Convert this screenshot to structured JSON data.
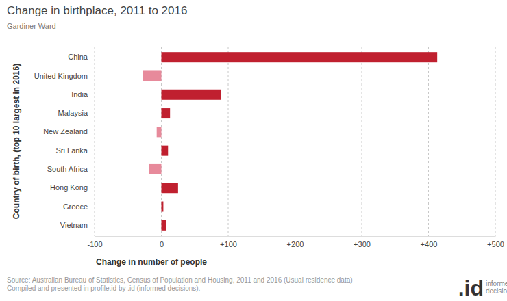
{
  "chart_data": {
    "type": "bar",
    "orientation": "horizontal",
    "title": "Change in birthplace, 2011 to 2016",
    "subtitle": "Gardiner Ward",
    "y_label": "Country of birth, (top 10 largest in 2016)",
    "x_label": "Change in number of people",
    "categories": [
      "China",
      "United Kingdom",
      "India",
      "Malaysia",
      "New Zealand",
      "Sri Lanka",
      "South Africa",
      "Hong Kong",
      "Greece",
      "Vietnam"
    ],
    "values": [
      413,
      -28,
      89,
      13,
      -7,
      10,
      -18,
      25,
      3,
      7
    ],
    "colors": [
      "#c0202f",
      "#e78a9b",
      "#c0202f",
      "#c0202f",
      "#e78a9b",
      "#c0202f",
      "#e78a9b",
      "#c0202f",
      "#c0202f",
      "#c0202f"
    ],
    "xlim": [
      -100,
      500
    ],
    "xticks": [
      -100,
      0,
      {
        "value": 100,
        "label": "+100"
      },
      {
        "value": 200,
        "label": "+200"
      },
      {
        "value": 300,
        "label": "+300"
      },
      {
        "value": 400,
        "label": "+400"
      },
      {
        "value": 500,
        "label": "+500"
      }
    ],
    "grid": true,
    "source": [
      "Source: Australian Bureau of Statistics, Census of Population and Housing, 2011 and 2016 (Usual residence data)",
      "Compiled and presented in profile.id by .id (informed decisions)."
    ],
    "logo": {
      "mark": ".id",
      "lines": [
        "informed",
        "decisions"
      ]
    }
  }
}
